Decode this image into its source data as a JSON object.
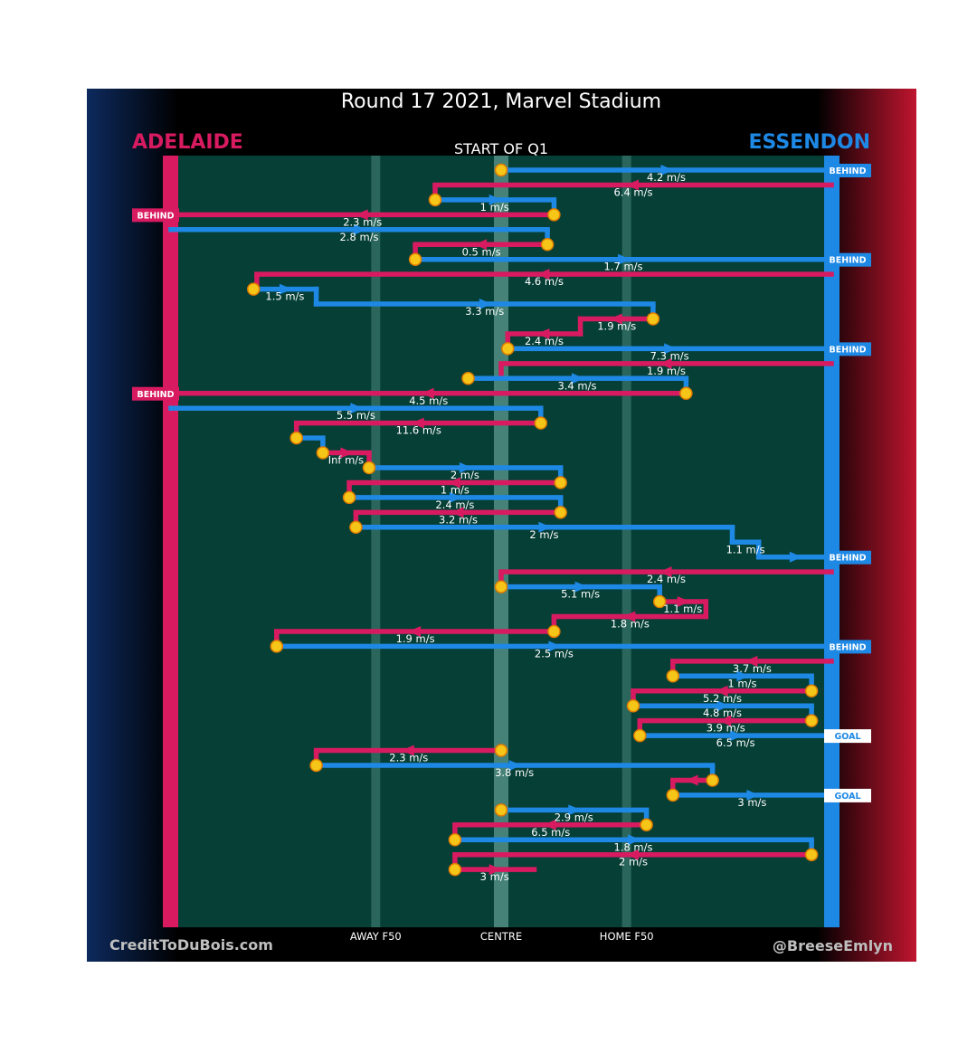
{
  "title": "Round 17 2021, Marvel Stadium",
  "teams": {
    "left": {
      "name": "ADELAIDE",
      "color": "#d81b60"
    },
    "right": {
      "name": "ESSENDON",
      "color": "#1e88e5"
    }
  },
  "quarter_label": "START OF Q1",
  "credits": {
    "left": "CreditToDuBois.com",
    "right": "@BreeseEmlyn"
  },
  "colors": {
    "field": "#053f36",
    "adelaide_path": "#d81b60",
    "essendon_path": "#1e88e5",
    "start_marker": "#f5c518",
    "background_left": "#0d2a5e",
    "background_right": "#c0152f"
  },
  "chart_data": {
    "type": "chain-flow",
    "x_axis": {
      "description": "field position from Adelaide goal (0) to Essendon goal (100)",
      "range": [
        0,
        100
      ],
      "ticks": [
        {
          "label": "AWAY F50",
          "value": 31
        },
        {
          "label": "CENTRE",
          "value": 50
        },
        {
          "label": "HOME F50",
          "value": 69
        }
      ]
    },
    "chains": [
      {
        "team": "Essendon",
        "start": 50,
        "segments": [
          {
            "to": 100,
            "speed": "4.2 m/s"
          }
        ],
        "end_tag": "BEHIND"
      },
      {
        "team": "Adelaide",
        "start": 100,
        "segments": [
          {
            "to": 40,
            "speed": "6.4 m/s"
          }
        ]
      },
      {
        "team": "Essendon",
        "start": 40,
        "segments": [
          {
            "to": 58,
            "speed": "1 m/s"
          }
        ]
      },
      {
        "team": "Adelaide",
        "start": 58,
        "segments": [
          {
            "to": 0,
            "speed": "2.3 m/s"
          }
        ],
        "end_tag": "BEHIND"
      },
      {
        "team": "Essendon",
        "start": 0,
        "segments": [
          {
            "to": 57,
            "speed": "2.8 m/s"
          }
        ]
      },
      {
        "team": "Adelaide",
        "start": 57,
        "segments": [
          {
            "to": 37,
            "speed": "0.5 m/s"
          }
        ]
      },
      {
        "team": "Essendon",
        "start": 37,
        "segments": [
          {
            "to": 100,
            "speed": "1.7 m/s"
          }
        ],
        "end_tag": "BEHIND"
      },
      {
        "team": "Adelaide",
        "start": 100,
        "segments": [
          {
            "to": 13,
            "speed": "4.6 m/s"
          }
        ]
      },
      {
        "team": "Essendon",
        "start": 12.5,
        "segments": [
          {
            "to": 22,
            "speed": "1.5 m/s"
          },
          {
            "to": 73,
            "speed": "3.3 m/s"
          }
        ]
      },
      {
        "team": "Adelaide",
        "start": 73,
        "segments": [
          {
            "to": 62,
            "speed": "1.9 m/s"
          },
          {
            "to": 51,
            "speed": "2.4 m/s"
          }
        ]
      },
      {
        "team": "Essendon",
        "start": 51,
        "segments": [
          {
            "to": 100,
            "speed": "7.3 m/s"
          }
        ],
        "end_tag": "BEHIND"
      },
      {
        "team": "Adelaide",
        "start": 100,
        "segments": [
          {
            "to": 50,
            "speed": "1.9 m/s"
          }
        ]
      },
      {
        "team": "Essendon",
        "start": 45,
        "segments": [
          {
            "to": 78,
            "speed": "3.4 m/s"
          }
        ]
      },
      {
        "team": "Adelaide",
        "start": 78,
        "segments": [
          {
            "to": 0,
            "speed": "4.5 m/s"
          }
        ],
        "end_tag": "BEHIND"
      },
      {
        "team": "Essendon",
        "start": 0,
        "segments": [
          {
            "to": 56,
            "speed": "5.5 m/s"
          }
        ]
      },
      {
        "team": "Adelaide",
        "start": 56,
        "segments": [
          {
            "to": 19,
            "speed": "11.6 m/s"
          }
        ]
      },
      {
        "team": "Essendon",
        "start": 19,
        "segments": [
          {
            "to": 23,
            "speed": ""
          }
        ]
      },
      {
        "team": "Adelaide",
        "start": 23,
        "segments": [
          {
            "to": 30,
            "speed": "Inf m/s"
          }
        ]
      },
      {
        "team": "Essendon",
        "start": 30,
        "segments": [
          {
            "to": 59,
            "speed": "2 m/s"
          }
        ]
      },
      {
        "team": "Adelaide",
        "start": 59,
        "segments": [
          {
            "to": 27,
            "speed": "1 m/s"
          }
        ]
      },
      {
        "team": "Essendon",
        "start": 27,
        "segments": [
          {
            "to": 59,
            "speed": "2.4 m/s"
          }
        ]
      },
      {
        "team": "Adelaide",
        "start": 59,
        "segments": [
          {
            "to": 28,
            "speed": "3.2 m/s"
          }
        ]
      },
      {
        "team": "Essendon",
        "start": 28,
        "segments": [
          {
            "to": 85,
            "speed": "2 m/s"
          },
          {
            "to": 89,
            "speed": "1.1 m/s"
          },
          {
            "to": 100,
            "speed": ""
          }
        ],
        "end_tag": "BEHIND"
      },
      {
        "team": "Adelaide",
        "start": 100,
        "segments": [
          {
            "to": 50,
            "speed": "2.4 m/s"
          }
        ]
      },
      {
        "team": "Essendon",
        "start": 50,
        "segments": [
          {
            "to": 74,
            "speed": "5.1 m/s"
          }
        ]
      },
      {
        "team": "Adelaide",
        "start": 74,
        "segments": [
          {
            "to": 81,
            "speed": "1.1 m/s"
          },
          {
            "to": 58,
            "speed": "1.8 m/s"
          }
        ]
      },
      {
        "team": "Adelaide",
        "start": 58,
        "segments": [
          {
            "to": 16,
            "speed": "1.9 m/s"
          }
        ]
      },
      {
        "team": "Essendon",
        "start": 16,
        "segments": [
          {
            "to": 100,
            "speed": "2.5 m/s"
          }
        ],
        "end_tag": "BEHIND"
      },
      {
        "team": "Adelaide",
        "start": 100,
        "segments": [
          {
            "to": 76,
            "speed": "3.7 m/s"
          }
        ]
      },
      {
        "team": "Essendon",
        "start": 76,
        "segments": [
          {
            "to": 97,
            "speed": "1 m/s"
          }
        ]
      },
      {
        "team": "Adelaide",
        "start": 97,
        "segments": [
          {
            "to": 70,
            "speed": "5.2 m/s"
          }
        ]
      },
      {
        "team": "Essendon",
        "start": 70,
        "segments": [
          {
            "to": 97,
            "speed": "4.8 m/s"
          }
        ]
      },
      {
        "team": "Adelaide",
        "start": 97,
        "segments": [
          {
            "to": 71,
            "speed": "3.9 m/s"
          }
        ]
      },
      {
        "team": "Essendon",
        "start": 71,
        "segments": [
          {
            "to": 100,
            "speed": "6.5 m/s"
          }
        ],
        "end_tag": "GOAL"
      },
      {
        "team": "Adelaide",
        "start": 50,
        "segments": [
          {
            "to": 22,
            "speed": "2.3 m/s"
          }
        ]
      },
      {
        "team": "Essendon",
        "start": 22,
        "segments": [
          {
            "to": 82,
            "speed": "3.8 m/s"
          }
        ]
      },
      {
        "team": "Adelaide",
        "start": 82,
        "segments": [
          {
            "to": 76,
            "speed": ""
          }
        ]
      },
      {
        "team": "Essendon",
        "start": 76,
        "segments": [
          {
            "to": 100,
            "speed": "3 m/s"
          }
        ],
        "end_tag": "GOAL"
      },
      {
        "team": "Essendon",
        "start": 50,
        "segments": [
          {
            "to": 72,
            "speed": "2.9 m/s"
          }
        ]
      },
      {
        "team": "Adelaide",
        "start": 72,
        "segments": [
          {
            "to": 43,
            "speed": "6.5 m/s"
          }
        ]
      },
      {
        "team": "Essendon",
        "start": 43,
        "segments": [
          {
            "to": 97,
            "speed": "1.8 m/s"
          }
        ]
      },
      {
        "team": "Adelaide",
        "start": 97,
        "segments": [
          {
            "to": 43,
            "speed": "2 m/s"
          }
        ]
      },
      {
        "team": "Adelaide",
        "start": 43,
        "segments": [
          {
            "to": 55,
            "speed": "3 m/s"
          }
        ]
      }
    ]
  }
}
